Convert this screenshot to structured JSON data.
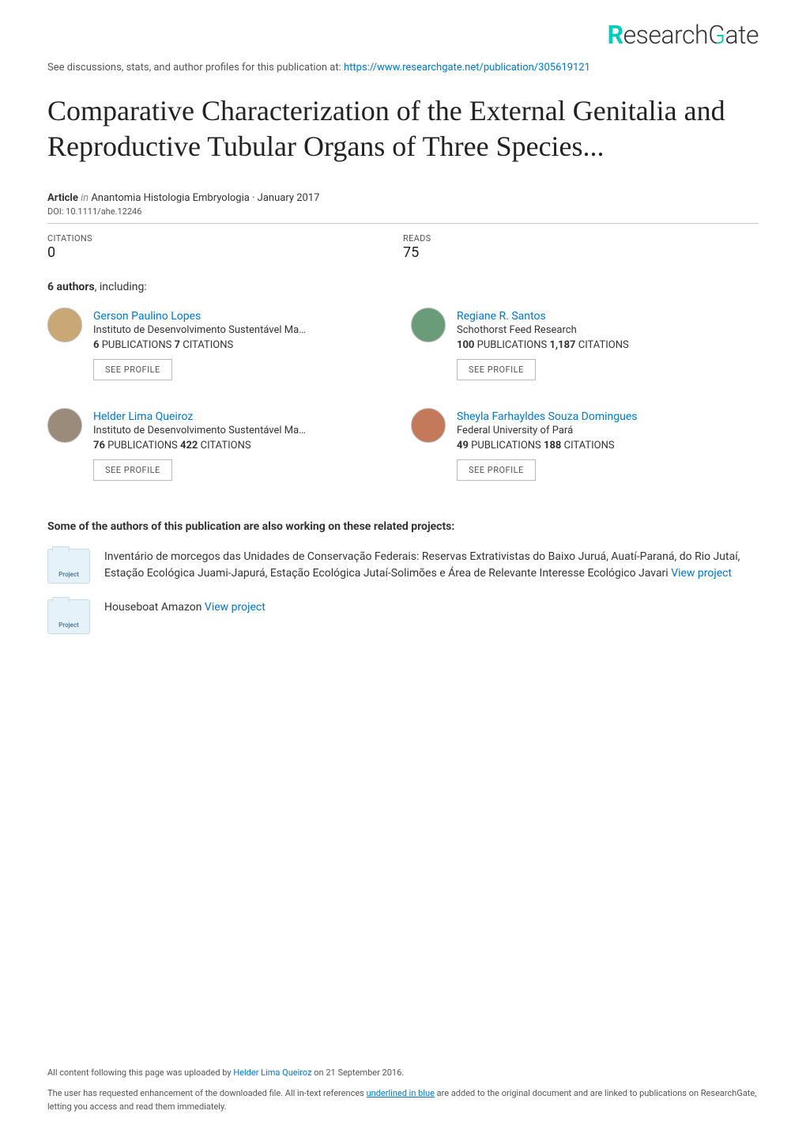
{
  "logo_text": "ResearchGate",
  "discuss_prefix": "See discussions, stats, and author profiles for this publication at: ",
  "discuss_url": "https://www.researchgate.net/publication/305619121",
  "title": "Comparative Characterization of the External Genitalia and Reproductive Tubular Organs of Three Species...",
  "article_line": {
    "label": "Article",
    "in": " in ",
    "journal": "Anantomia Histologia Embryologia · January 2017"
  },
  "doi": "DOI: 10.1111/ahe.12246",
  "stats": {
    "citations_label": "CITATIONS",
    "citations_value": "0",
    "reads_label": "READS",
    "reads_value": "75"
  },
  "authors_heading_num": "6 authors",
  "authors_heading_rest": ", including:",
  "authors": [
    {
      "name": "Gerson Paulino Lopes",
      "affil": "Instituto de Desenvolvimento Sustentável Ma…",
      "pubs_num": "6",
      "pubs_label": " PUBLICATIONS   ",
      "cite_num": "7",
      "cite_label": " CITATIONS",
      "avatar_bg": "#c9a876"
    },
    {
      "name": "Regiane R. Santos",
      "affil": "Schothorst Feed Research",
      "pubs_num": "100",
      "pubs_label": " PUBLICATIONS   ",
      "cite_num": "1,187",
      "cite_label": " CITATIONS",
      "avatar_bg": "#6b9c7a"
    },
    {
      "name": "Helder Lima Queiroz",
      "affil": "Instituto de Desenvolvimento Sustentável Ma…",
      "pubs_num": "76",
      "pubs_label": " PUBLICATIONS   ",
      "cite_num": "422",
      "cite_label": " CITATIONS",
      "avatar_bg": "#9a8b7a"
    },
    {
      "name": "Sheyla Farhayldes Souza Domingues",
      "affil": "Federal University of Pará",
      "pubs_num": "49",
      "pubs_label": " PUBLICATIONS   ",
      "cite_num": "188",
      "cite_label": " CITATIONS",
      "avatar_bg": "#c47a5a"
    }
  ],
  "see_profile": "SEE PROFILE",
  "related_heading": "Some of the authors of this publication are also working on these related projects:",
  "project_icon_label": "Project",
  "projects": [
    {
      "text": "Inventário de morcegos das Unidades de Conservação Federais: Reservas Extrativistas do Baixo Juruá, Auatí-Paraná, do Rio Jutaí, Estação Ecológica Juami-Japurá, Estação Ecológica Jutaí-Solimões e Área de Relevante Interesse Ecológico Javari ",
      "link": "View project"
    },
    {
      "text": "Houseboat Amazon ",
      "link": "View project"
    }
  ],
  "footer": {
    "line1_a": "All content following this page was uploaded by ",
    "line1_link": "Helder Lima Queiroz",
    "line1_b": " on 21 September 2016.",
    "line2_a": "The user has requested enhancement of the downloaded file. All in-text references ",
    "line2_underlined": "underlined in blue",
    "line2_b": " are added to the original document and are linked to publications on ResearchGate, letting you access and read them immediately."
  },
  "colors": {
    "link": "#0077cc",
    "accent": "#00ccbb",
    "text": "#333333",
    "muted": "#555555",
    "border": "#cccccc"
  }
}
